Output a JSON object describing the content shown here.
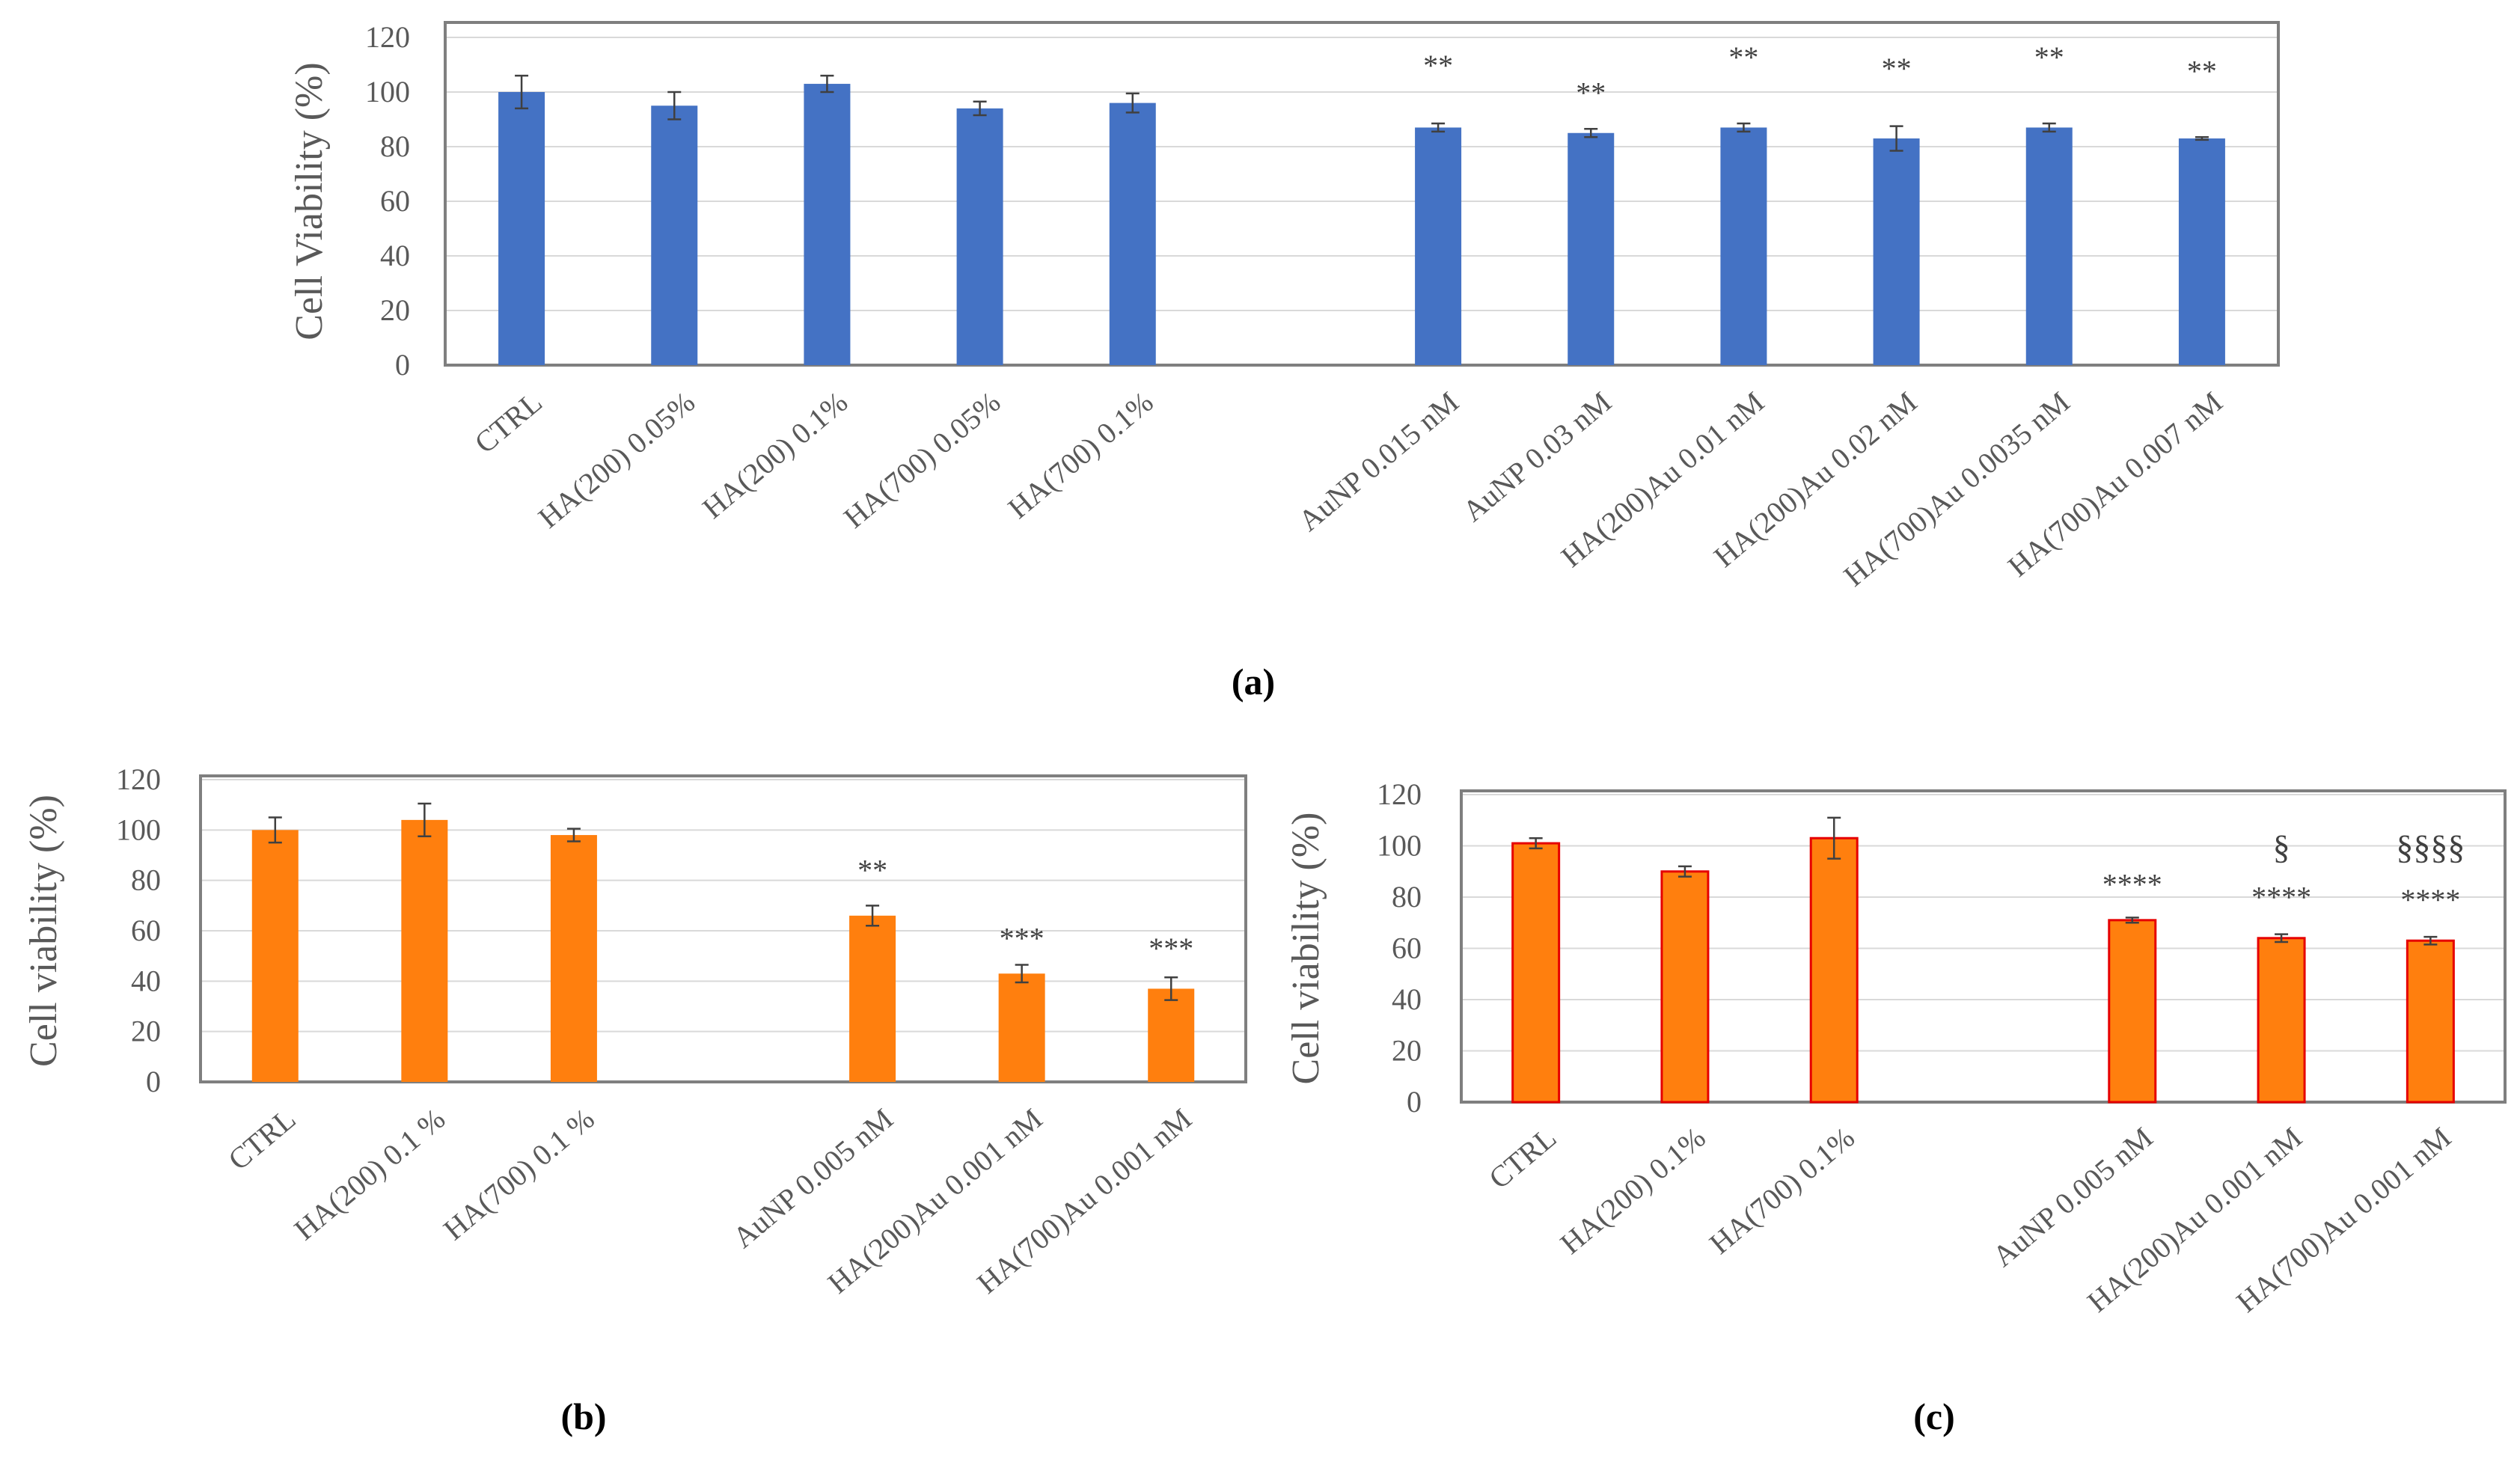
{
  "chart_data": [
    {
      "panel_label": "(a)",
      "type": "bar",
      "ylabel": "Cell Viability (%)",
      "xlabel": "",
      "ylim": [
        0,
        120
      ],
      "yticks": [
        "0",
        "20",
        "40",
        "60",
        "80",
        "100",
        "120"
      ],
      "grid": true,
      "bar_color": "#4472C4",
      "categories": [
        "CTRL",
        "HA(200) 0.05%",
        "HA(200) 0.1%",
        "HA(700) 0.05%",
        "HA(700) 0.1%",
        "",
        "AuNP     0.015 nM",
        "AuNP     0.03 nM",
        "HA(200)Au 0.01 nM",
        "HA(200)Au 0.02 nM",
        "HA(700)Au 0.0035 nM",
        "HA(700)Au 0.007 nM"
      ],
      "values": [
        100,
        95,
        103,
        94,
        96,
        null,
        87,
        85,
        87,
        83,
        87,
        83
      ],
      "errors": [
        6,
        5,
        3,
        2.5,
        3.5,
        null,
        1.5,
        1.5,
        1.5,
        4.5,
        1.5,
        0.5
      ],
      "annotations": [
        "",
        "",
        "",
        "",
        "",
        "",
        "**",
        "**",
        "**",
        "**",
        "**",
        "**"
      ],
      "annotation_values": [
        null,
        null,
        null,
        null,
        null,
        null,
        106,
        96,
        109,
        105,
        109,
        104
      ]
    },
    {
      "panel_label": "(b)",
      "type": "bar",
      "ylabel": "Cell viability (%)",
      "xlabel": "",
      "ylim": [
        0,
        120
      ],
      "yticks": [
        "0",
        "20",
        "40",
        "60",
        "80",
        "100",
        "120"
      ],
      "grid": true,
      "bar_color": "#FF7F0E",
      "categories": [
        "CTRL",
        "HA(200)  0.1 %",
        "HA(700)  0.1 %",
        "",
        "AuNP 0.005 nM",
        "HA(200)Au 0.001 nM",
        "HA(700)Au 0.001 nM"
      ],
      "values": [
        100,
        104,
        98,
        null,
        66,
        43,
        37
      ],
      "errors": [
        5,
        6.5,
        2.5,
        null,
        4,
        3.5,
        4.5
      ],
      "annotations": [
        "",
        "",
        "",
        "",
        "**",
        "***",
        "***"
      ],
      "annotation_values": [
        null,
        null,
        null,
        null,
        80,
        53,
        49
      ]
    },
    {
      "panel_label": "(c)",
      "type": "bar",
      "ylabel": "Cell viability (%)",
      "xlabel": "",
      "ylim": [
        0,
        120
      ],
      "yticks": [
        "0",
        "20",
        "40",
        "60",
        "80",
        "100",
        "120"
      ],
      "grid": true,
      "bar_color": "#FF7F0E",
      "bar_edge_color": "#E60000",
      "categories": [
        "CTRL",
        "HA(200)  0.1%",
        "HA(700)  0.1%",
        "",
        "AuNP 0.005 nM",
        "HA(200)Au 0.001 nM",
        "HA(700)Au 0.001 nM"
      ],
      "values": [
        101,
        90,
        103,
        null,
        71,
        64,
        63
      ],
      "errors": [
        2,
        2,
        8,
        null,
        1,
        1.5,
        1.5
      ],
      "annotations": [
        "",
        "",
        "",
        "",
        "****",
        "****",
        "****"
      ],
      "annotation_values": [
        null,
        null,
        null,
        null,
        81,
        76,
        75
      ],
      "annotations2": [
        "",
        "",
        "",
        "",
        "",
        "§",
        "§§§§"
      ],
      "annotation2_values": [
        null,
        null,
        null,
        null,
        null,
        95,
        95
      ]
    }
  ]
}
